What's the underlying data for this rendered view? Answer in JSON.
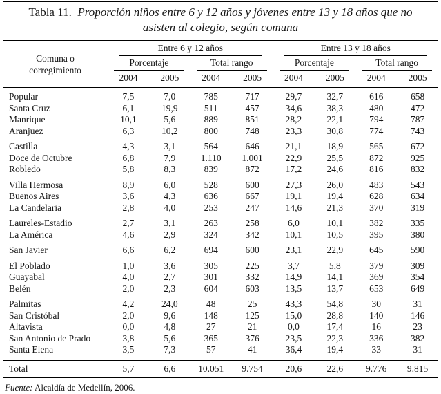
{
  "title": {
    "label": "Tabla 11.",
    "text": "Proporción niños entre 6 y 12 años y jóvenes entre 13 y 18 años que no asisten al colegio, según comuna"
  },
  "table": {
    "corner_header": "Comuna o corregimiento",
    "group_headers": [
      "Entre 6 y 12 años",
      "Entre 13 y 18 años"
    ],
    "sub_headers": [
      "Porcentaje",
      "Total rango",
      "Porcentaje",
      "Total rango"
    ],
    "year_headers": [
      "2004",
      "2005",
      "2004",
      "2005",
      "2004",
      "2005",
      "2004",
      "2005"
    ],
    "rows": [
      {
        "comuna": "Popular",
        "group_start": false,
        "values": [
          "7,5",
          "7,0",
          "785",
          "717",
          "29,7",
          "32,7",
          "616",
          "658"
        ]
      },
      {
        "comuna": "Santa Cruz",
        "group_start": false,
        "values": [
          "6,1",
          "19,9",
          "511",
          "457",
          "34,6",
          "38,3",
          "480",
          "472"
        ]
      },
      {
        "comuna": "Manrique",
        "group_start": false,
        "values": [
          "10,1",
          "5,6",
          "889",
          "851",
          "28,2",
          "22,1",
          "794",
          "787"
        ]
      },
      {
        "comuna": "Aranjuez",
        "group_start": false,
        "values": [
          "6,3",
          "10,2",
          "800",
          "748",
          "23,3",
          "30,8",
          "774",
          "743"
        ]
      },
      {
        "comuna": "Castilla",
        "group_start": true,
        "values": [
          "4,3",
          "3,1",
          "564",
          "646",
          "21,1",
          "18,9",
          "565",
          "672"
        ]
      },
      {
        "comuna": "Doce de Octubre",
        "group_start": false,
        "values": [
          "6,8",
          "7,9",
          "1.110",
          "1.001",
          "22,9",
          "25,5",
          "872",
          "925"
        ]
      },
      {
        "comuna": "Robledo",
        "group_start": false,
        "values": [
          "5,8",
          "8,3",
          "839",
          "872",
          "17,2",
          "24,6",
          "816",
          "832"
        ]
      },
      {
        "comuna": "Villa Hermosa",
        "group_start": true,
        "values": [
          "8,9",
          "6,0",
          "528",
          "600",
          "27,3",
          "26,0",
          "483",
          "543"
        ]
      },
      {
        "comuna": "Buenos Aires",
        "group_start": false,
        "values": [
          "3,6",
          "4,3",
          "636",
          "667",
          "19,1",
          "19,4",
          "628",
          "634"
        ]
      },
      {
        "comuna": "La Candelaria",
        "group_start": false,
        "values": [
          "2,8",
          "4,0",
          "253",
          "247",
          "14,6",
          "21,3",
          "370",
          "319"
        ]
      },
      {
        "comuna": "Laureles-Estadio",
        "group_start": true,
        "values": [
          "2,7",
          "3,1",
          "263",
          "258",
          "6,0",
          "10,1",
          "382",
          "335"
        ]
      },
      {
        "comuna": "La América",
        "group_start": false,
        "values": [
          "4,6",
          "2,9",
          "324",
          "342",
          "10,1",
          "10,5",
          "395",
          "380"
        ]
      },
      {
        "comuna": "San Javier",
        "group_start": true,
        "values": [
          "6,6",
          "6,2",
          "694",
          "600",
          "23,1",
          "22,9",
          "645",
          "590"
        ]
      },
      {
        "comuna": "El Poblado",
        "group_start": true,
        "values": [
          "1,0",
          "3,6",
          "305",
          "225",
          "3,7",
          "5,8",
          "379",
          "309"
        ]
      },
      {
        "comuna": "Guayabal",
        "group_start": false,
        "values": [
          "4,0",
          "2,7",
          "301",
          "332",
          "14,9",
          "14,1",
          "369",
          "354"
        ]
      },
      {
        "comuna": "Belén",
        "group_start": false,
        "values": [
          "2,0",
          "2,3",
          "604",
          "603",
          "13,5",
          "13,7",
          "653",
          "649"
        ]
      },
      {
        "comuna": "Palmitas",
        "group_start": true,
        "values": [
          "4,2",
          "24,0",
          "48",
          "25",
          "43,3",
          "54,8",
          "30",
          "31"
        ]
      },
      {
        "comuna": "San Cristóbal",
        "group_start": false,
        "values": [
          "2,0",
          "9,6",
          "148",
          "125",
          "15,0",
          "28,8",
          "140",
          "146"
        ]
      },
      {
        "comuna": "Altavista",
        "group_start": false,
        "values": [
          "0,0",
          "4,8",
          "27",
          "21",
          "0,0",
          "17,4",
          "16",
          "23"
        ]
      },
      {
        "comuna": "San Antonio de Prado",
        "group_start": false,
        "values": [
          "3,8",
          "5,6",
          "365",
          "376",
          "23,5",
          "22,3",
          "336",
          "382"
        ]
      },
      {
        "comuna": "Santa Elena",
        "group_start": false,
        "values": [
          "3,5",
          "7,3",
          "57",
          "41",
          "36,4",
          "19,4",
          "33",
          "31"
        ]
      }
    ],
    "total_row": {
      "comuna": "Total",
      "values": [
        "5,7",
        "6,6",
        "10.051",
        "9.754",
        "20,6",
        "22,6",
        "9.776",
        "9.815"
      ]
    }
  },
  "footer": {
    "label": "Fuente:",
    "text": " Alcaldía de Medellín, 2006."
  }
}
